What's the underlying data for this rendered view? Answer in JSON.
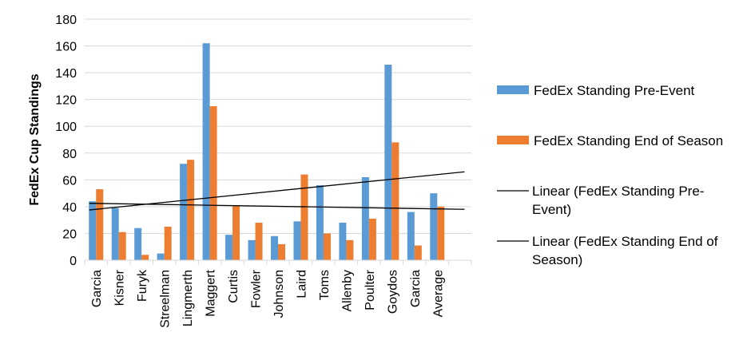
{
  "chart_data": {
    "type": "bar",
    "title": "",
    "xlabel": "",
    "ylabel": "FedEx Cup Standings",
    "ylim": [
      0,
      180
    ],
    "yticks": [
      0,
      20,
      40,
      60,
      80,
      100,
      120,
      140,
      160,
      180
    ],
    "grid": true,
    "legend_position": "right",
    "categories": [
      "Garcia",
      "Kisner",
      "Furyk",
      "Streelman",
      "Lingmerth",
      "Maggert",
      "Curtis",
      "Fowler",
      "Johnson",
      "Laird",
      "Toms",
      "Allenby",
      "Poulter",
      "Goydos",
      "Garcia",
      "Average",
      ""
    ],
    "series": [
      {
        "name": "FedEx Standing Pre-Event",
        "color": "#5B9BD5",
        "values": [
          44,
          39,
          24,
          5,
          72,
          162,
          19,
          15,
          18,
          29,
          56,
          28,
          62,
          146,
          36,
          50,
          null
        ]
      },
      {
        "name": "FedEx Standing End of Season",
        "color": "#ED7D31",
        "values": [
          53,
          21,
          4,
          25,
          75,
          115,
          41,
          28,
          12,
          64,
          20,
          15,
          31,
          88,
          11,
          40,
          null
        ]
      }
    ],
    "trendlines": [
      {
        "name": "Linear (FedEx Standing Pre-Event)",
        "type": "linear",
        "color": "#000000",
        "start": 37.5,
        "end": 66
      },
      {
        "name": "Linear (FedEx Standing End of Season)",
        "type": "linear",
        "color": "#000000",
        "start": 42.5,
        "end": 38
      }
    ]
  }
}
